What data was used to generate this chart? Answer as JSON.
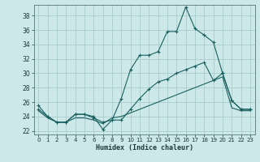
{
  "xlabel": "Humidex (Indice chaleur)",
  "bg_color": "#cce8e8",
  "grid_color": "#aacccc",
  "line_color": "#1a6060",
  "xlim": [
    -0.5,
    23.5
  ],
  "ylim": [
    21.5,
    39.5
  ],
  "yticks": [
    22,
    24,
    26,
    28,
    30,
    32,
    34,
    36,
    38
  ],
  "xticks": [
    0,
    1,
    2,
    3,
    4,
    5,
    6,
    7,
    8,
    9,
    10,
    11,
    12,
    13,
    14,
    15,
    16,
    17,
    18,
    19,
    20,
    21,
    22,
    23
  ],
  "series1_x": [
    0,
    1,
    2,
    3,
    4,
    5,
    6,
    7,
    8,
    9,
    10,
    11,
    12,
    13,
    14,
    15,
    16,
    17,
    18,
    19,
    20,
    21,
    22,
    23
  ],
  "series1_y": [
    25.5,
    24.0,
    23.2,
    23.2,
    24.3,
    24.3,
    24.0,
    22.2,
    23.5,
    26.5,
    30.5,
    32.5,
    32.5,
    33.0,
    35.8,
    35.8,
    39.2,
    36.2,
    35.3,
    34.3,
    30.0,
    26.2,
    25.0,
    25.0
  ],
  "series2_x": [
    0,
    1,
    2,
    3,
    4,
    5,
    6,
    7,
    8,
    9,
    10,
    11,
    12,
    13,
    14,
    15,
    16,
    17,
    18,
    19,
    20,
    21,
    22,
    23
  ],
  "series2_y": [
    25.0,
    24.0,
    23.2,
    23.2,
    24.3,
    24.3,
    23.8,
    23.2,
    23.5,
    23.5,
    25.0,
    26.5,
    27.8,
    28.8,
    29.2,
    30.0,
    30.5,
    31.0,
    31.5,
    29.0,
    30.0,
    26.2,
    25.0,
    25.0
  ],
  "series3_x": [
    0,
    1,
    2,
    3,
    4,
    5,
    6,
    7,
    8,
    9,
    10,
    11,
    12,
    13,
    14,
    15,
    16,
    17,
    18,
    19,
    20,
    21,
    22,
    23
  ],
  "series3_y": [
    24.8,
    23.8,
    23.2,
    23.2,
    23.8,
    23.8,
    23.5,
    23.0,
    23.8,
    24.0,
    24.5,
    25.0,
    25.5,
    26.0,
    26.5,
    27.0,
    27.5,
    28.0,
    28.5,
    29.0,
    29.5,
    25.2,
    24.8,
    24.8
  ],
  "marker_series": [
    0,
    1,
    2,
    3,
    4,
    5,
    6,
    7,
    8,
    9,
    10,
    11,
    12,
    13,
    14,
    15,
    16,
    17,
    18,
    19,
    20,
    21,
    22,
    23
  ]
}
